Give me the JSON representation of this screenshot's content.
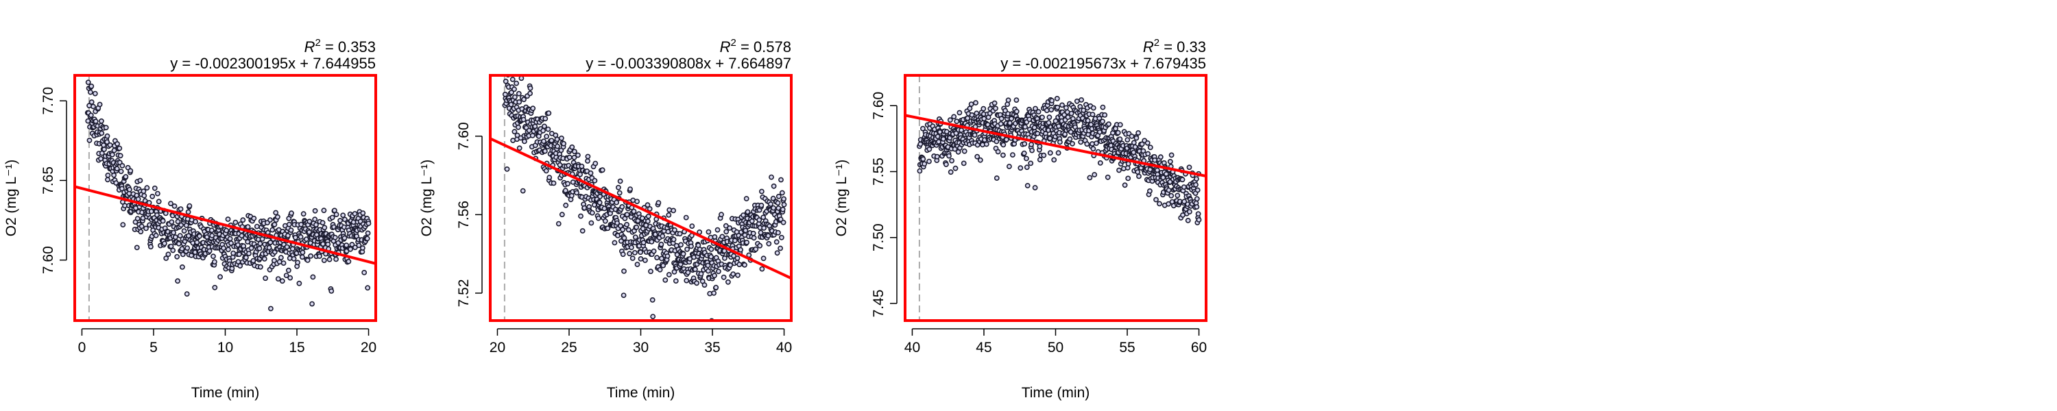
{
  "charts": [
    {
      "r2_prefix": "R",
      "r2_sup": "2",
      "r2_value": " = 0.353",
      "equation": "y = -0.002300195x + 7.644955",
      "xlabel": "Time (min)",
      "ylabel": "O2 (mg L⁻¹)",
      "xlim": [
        -0.5,
        20.5
      ],
      "ylim": [
        7.562,
        7.716
      ],
      "xticks": [
        0,
        5,
        10,
        15,
        20
      ],
      "xtick_labels": [
        "0",
        "5",
        "10",
        "15",
        "20"
      ],
      "yticks": [
        7.6,
        7.65,
        7.7
      ],
      "ytick_labels": [
        "7.60",
        "7.65",
        "7.70"
      ],
      "vline_x": 0.5,
      "fit": {
        "slope": -0.002300195,
        "intercept": 7.644955
      },
      "trend": [
        [
          0.4,
          7.708
        ],
        [
          0.6,
          7.7
        ],
        [
          0.8,
          7.69
        ],
        [
          1.0,
          7.682
        ],
        [
          1.3,
          7.675
        ],
        [
          1.6,
          7.668
        ],
        [
          2.0,
          7.66
        ],
        [
          2.5,
          7.653
        ],
        [
          3.0,
          7.646
        ],
        [
          3.5,
          7.64
        ],
        [
          4.0,
          7.634
        ],
        [
          4.5,
          7.628
        ],
        [
          5.0,
          7.624
        ],
        [
          6.0,
          7.619
        ],
        [
          7.0,
          7.616
        ],
        [
          8.0,
          7.612
        ],
        [
          9.0,
          7.61
        ],
        [
          10.0,
          7.61
        ],
        [
          12.0,
          7.611
        ],
        [
          14.0,
          7.612
        ],
        [
          16.0,
          7.613
        ],
        [
          18.0,
          7.616
        ],
        [
          20.0,
          7.621
        ]
      ],
      "noise": 0.0085
    },
    {
      "r2_prefix": "R",
      "r2_sup": "2",
      "r2_value": " = 0.578",
      "equation": "y = -0.003390808x + 7.664897",
      "xlabel": "Time (min)",
      "ylabel": "O2 (mg L⁻¹)",
      "xlim": [
        19.5,
        40.5
      ],
      "ylim": [
        7.506,
        7.631
      ],
      "xticks": [
        20,
        25,
        30,
        35,
        40
      ],
      "xtick_labels": [
        "20",
        "25",
        "30",
        "35",
        "40"
      ],
      "yticks": [
        7.52,
        7.56,
        7.6
      ],
      "ytick_labels": [
        "7.52",
        "7.56",
        "7.60"
      ],
      "vline_x": 20.5,
      "fit": {
        "slope": -0.003390808,
        "intercept": 7.664897
      },
      "trend": [
        [
          20.5,
          7.623
        ],
        [
          21.0,
          7.618
        ],
        [
          22.0,
          7.608
        ],
        [
          23.0,
          7.6
        ],
        [
          24.0,
          7.592
        ],
        [
          25.0,
          7.583
        ],
        [
          26.0,
          7.575
        ],
        [
          27.0,
          7.568
        ],
        [
          28.0,
          7.562
        ],
        [
          29.0,
          7.556
        ],
        [
          30.0,
          7.552
        ],
        [
          31.0,
          7.548
        ],
        [
          32.0,
          7.544
        ],
        [
          33.0,
          7.54
        ],
        [
          34.0,
          7.537
        ],
        [
          35.0,
          7.538
        ],
        [
          36.0,
          7.542
        ],
        [
          37.0,
          7.547
        ],
        [
          38.0,
          7.552
        ],
        [
          39.0,
          7.556
        ],
        [
          40.0,
          7.56
        ]
      ],
      "noise": 0.008
    },
    {
      "r2_prefix": "R",
      "r2_sup": "2",
      "r2_value": " = 0.33",
      "equation": "y = -0.002195673x + 7.679435",
      "xlabel": "Time (min)",
      "ylabel": "O2 (mg L⁻¹)",
      "xlim": [
        39.5,
        60.5
      ],
      "ylim": [
        7.437,
        7.623
      ],
      "xticks": [
        40,
        45,
        50,
        55,
        60
      ],
      "xtick_labels": [
        "40",
        "45",
        "50",
        "55",
        "60"
      ],
      "yticks": [
        7.45,
        7.5,
        7.55,
        7.6
      ],
      "ytick_labels": [
        "7.45",
        "7.50",
        "7.55",
        "7.60"
      ],
      "vline_x": 40.5,
      "fit": {
        "slope": -0.002195673,
        "intercept": 7.679435
      },
      "trend": [
        [
          40.5,
          7.563
        ],
        [
          41.0,
          7.572
        ],
        [
          42.0,
          7.572
        ],
        [
          43.0,
          7.575
        ],
        [
          44.0,
          7.58
        ],
        [
          45.0,
          7.582
        ],
        [
          46.0,
          7.583
        ],
        [
          47.0,
          7.584
        ],
        [
          48.0,
          7.584
        ],
        [
          49.0,
          7.585
        ],
        [
          50.0,
          7.586
        ],
        [
          51.0,
          7.587
        ],
        [
          52.0,
          7.586
        ],
        [
          53.0,
          7.582
        ],
        [
          54.0,
          7.574
        ],
        [
          55.0,
          7.566
        ],
        [
          56.0,
          7.558
        ],
        [
          57.0,
          7.55
        ],
        [
          58.0,
          7.542
        ],
        [
          59.0,
          7.535
        ],
        [
          60.0,
          7.53
        ]
      ],
      "noise": 0.009
    }
  ],
  "colors": {
    "fit_line": "#ff0000",
    "frame": "#ff0000",
    "points": "#1a1a2e",
    "point_fill": "#d8d8f0",
    "vline": "#aaaaaa"
  }
}
